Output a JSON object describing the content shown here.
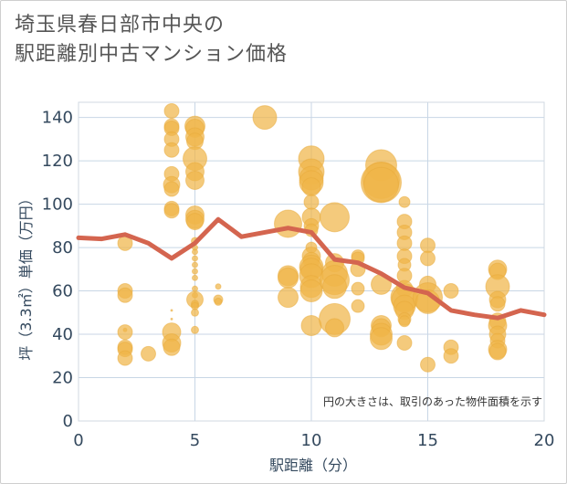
{
  "title_line1": "埼玉県春日部市中央の",
  "title_line2": "駅距離別中古マンション価格",
  "chart_data": {
    "type": "scatter",
    "xlabel": "駅距離（分）",
    "ylabel": "坪（3.3㎡）単価（万円）",
    "xlim": [
      0,
      20
    ],
    "ylim": [
      0,
      147
    ],
    "x_ticks": [
      0,
      5,
      10,
      15,
      20
    ],
    "y_ticks": [
      0,
      20,
      40,
      60,
      80,
      100,
      120,
      140
    ],
    "x_tick_labels": [
      "0",
      "5",
      "10",
      "15",
      "20"
    ],
    "y_tick_labels": [
      "0",
      "20",
      "40",
      "60",
      "80",
      "100",
      "120",
      "140"
    ],
    "grid": true,
    "annotation": "円の大きさは、取引のあった物件面積を示す",
    "colors": {
      "bubble": "#f0b54a",
      "line": "#d4654f",
      "grid": "#c8d6e5",
      "axis_text": "#34495e"
    },
    "series": [
      {
        "kind": "bubbles",
        "points": [
          {
            "x": 2,
            "y": 82,
            "s": 8
          },
          {
            "x": 2,
            "y": 60,
            "s": 8
          },
          {
            "x": 2,
            "y": 58,
            "s": 8
          },
          {
            "x": 2,
            "y": 42,
            "s": 2
          },
          {
            "x": 2,
            "y": 41,
            "s": 8
          },
          {
            "x": 2,
            "y": 34,
            "s": 8
          },
          {
            "x": 2,
            "y": 33,
            "s": 8
          },
          {
            "x": 2,
            "y": 29,
            "s": 8
          },
          {
            "x": 3,
            "y": 31,
            "s": 8
          },
          {
            "x": 4,
            "y": 143,
            "s": 8
          },
          {
            "x": 4,
            "y": 136,
            "s": 8
          },
          {
            "x": 4,
            "y": 135,
            "s": 8
          },
          {
            "x": 4,
            "y": 130,
            "s": 8
          },
          {
            "x": 4,
            "y": 125,
            "s": 8
          },
          {
            "x": 4,
            "y": 114,
            "s": 8
          },
          {
            "x": 4,
            "y": 109,
            "s": 9
          },
          {
            "x": 4,
            "y": 107,
            "s": 8
          },
          {
            "x": 4,
            "y": 98,
            "s": 8
          },
          {
            "x": 4,
            "y": 97,
            "s": 8
          },
          {
            "x": 4,
            "y": 51,
            "s": 1
          },
          {
            "x": 4,
            "y": 47,
            "s": 1
          },
          {
            "x": 4,
            "y": 41,
            "s": 10
          },
          {
            "x": 4,
            "y": 36,
            "s": 10
          },
          {
            "x": 4,
            "y": 34,
            "s": 9
          },
          {
            "x": 5,
            "y": 136,
            "s": 11
          },
          {
            "x": 5,
            "y": 135,
            "s": 10
          },
          {
            "x": 5,
            "y": 131,
            "s": 10
          },
          {
            "x": 5,
            "y": 129,
            "s": 9
          },
          {
            "x": 5,
            "y": 121,
            "s": 13
          },
          {
            "x": 5,
            "y": 115,
            "s": 10
          },
          {
            "x": 5,
            "y": 111,
            "s": 10
          },
          {
            "x": 5,
            "y": 95,
            "s": 10
          },
          {
            "x": 5,
            "y": 93,
            "s": 10
          },
          {
            "x": 5,
            "y": 92,
            "s": 9
          },
          {
            "x": 5,
            "y": 83,
            "s": 4
          },
          {
            "x": 5,
            "y": 80,
            "s": 3
          },
          {
            "x": 5,
            "y": 78,
            "s": 3
          },
          {
            "x": 5,
            "y": 75,
            "s": 3
          },
          {
            "x": 5,
            "y": 72,
            "s": 3
          },
          {
            "x": 5,
            "y": 69,
            "s": 3
          },
          {
            "x": 5,
            "y": 66,
            "s": 3
          },
          {
            "x": 5,
            "y": 61,
            "s": 3
          },
          {
            "x": 5,
            "y": 58,
            "s": 3
          },
          {
            "x": 5,
            "y": 56,
            "s": 9
          },
          {
            "x": 5,
            "y": 54,
            "s": 4
          },
          {
            "x": 5,
            "y": 53,
            "s": 4
          },
          {
            "x": 5,
            "y": 50,
            "s": 4
          },
          {
            "x": 5,
            "y": 42,
            "s": 4
          },
          {
            "x": 6,
            "y": 62,
            "s": 3
          },
          {
            "x": 6,
            "y": 56,
            "s": 5
          },
          {
            "x": 6,
            "y": 55,
            "s": 4
          },
          {
            "x": 8,
            "y": 140,
            "s": 13
          },
          {
            "x": 9,
            "y": 91,
            "s": 15
          },
          {
            "x": 9,
            "y": 67,
            "s": 11
          },
          {
            "x": 9,
            "y": 66,
            "s": 11
          },
          {
            "x": 9,
            "y": 57,
            "s": 11
          },
          {
            "x": 10,
            "y": 121,
            "s": 14
          },
          {
            "x": 10,
            "y": 115,
            "s": 14
          },
          {
            "x": 10,
            "y": 112,
            "s": 13
          },
          {
            "x": 10,
            "y": 110,
            "s": 13
          },
          {
            "x": 10,
            "y": 108,
            "s": 10
          },
          {
            "x": 10,
            "y": 101,
            "s": 8
          },
          {
            "x": 10,
            "y": 94,
            "s": 10
          },
          {
            "x": 10,
            "y": 90,
            "s": 8
          },
          {
            "x": 10,
            "y": 88,
            "s": 7
          },
          {
            "x": 10,
            "y": 80,
            "s": 6
          },
          {
            "x": 10,
            "y": 76,
            "s": 10
          },
          {
            "x": 10,
            "y": 74,
            "s": 9
          },
          {
            "x": 10,
            "y": 71,
            "s": 13
          },
          {
            "x": 10,
            "y": 70,
            "s": 12
          },
          {
            "x": 10,
            "y": 67,
            "s": 13
          },
          {
            "x": 10,
            "y": 62,
            "s": 12
          },
          {
            "x": 10,
            "y": 60,
            "s": 12
          },
          {
            "x": 10,
            "y": 44,
            "s": 11
          },
          {
            "x": 11,
            "y": 94,
            "s": 16
          },
          {
            "x": 11,
            "y": 73,
            "s": 10
          },
          {
            "x": 11,
            "y": 68,
            "s": 14
          },
          {
            "x": 11,
            "y": 65,
            "s": 16
          },
          {
            "x": 11,
            "y": 62,
            "s": 13
          },
          {
            "x": 11,
            "y": 47,
            "s": 17
          },
          {
            "x": 11,
            "y": 43,
            "s": 10
          },
          {
            "x": 12,
            "y": 76,
            "s": 7
          },
          {
            "x": 12,
            "y": 75,
            "s": 7
          },
          {
            "x": 12,
            "y": 70,
            "s": 8
          },
          {
            "x": 12,
            "y": 61,
            "s": 7
          },
          {
            "x": 12,
            "y": 53,
            "s": 7
          },
          {
            "x": 13,
            "y": 118,
            "s": 17
          },
          {
            "x": 13,
            "y": 111,
            "s": 20
          },
          {
            "x": 13,
            "y": 110,
            "s": 22
          },
          {
            "x": 13,
            "y": 109,
            "s": 19
          },
          {
            "x": 13,
            "y": 63,
            "s": 11
          },
          {
            "x": 13,
            "y": 44,
            "s": 11
          },
          {
            "x": 13,
            "y": 43,
            "s": 10
          },
          {
            "x": 13,
            "y": 40,
            "s": 12
          },
          {
            "x": 13,
            "y": 38,
            "s": 12
          },
          {
            "x": 14,
            "y": 101,
            "s": 6
          },
          {
            "x": 14,
            "y": 92,
            "s": 8
          },
          {
            "x": 14,
            "y": 87,
            "s": 8
          },
          {
            "x": 14,
            "y": 82,
            "s": 8
          },
          {
            "x": 14,
            "y": 76,
            "s": 8
          },
          {
            "x": 14,
            "y": 72,
            "s": 7
          },
          {
            "x": 14,
            "y": 67,
            "s": 8
          },
          {
            "x": 14,
            "y": 61,
            "s": 9
          },
          {
            "x": 14,
            "y": 57,
            "s": 15
          },
          {
            "x": 14,
            "y": 56,
            "s": 14
          },
          {
            "x": 14,
            "y": 53,
            "s": 12
          },
          {
            "x": 14,
            "y": 51,
            "s": 10
          },
          {
            "x": 14,
            "y": 47,
            "s": 7
          },
          {
            "x": 14,
            "y": 46,
            "s": 6
          },
          {
            "x": 14,
            "y": 36,
            "s": 8
          },
          {
            "x": 15,
            "y": 81,
            "s": 8
          },
          {
            "x": 15,
            "y": 75,
            "s": 8
          },
          {
            "x": 15,
            "y": 63,
            "s": 9
          },
          {
            "x": 15,
            "y": 57,
            "s": 16
          },
          {
            "x": 15,
            "y": 55,
            "s": 13
          },
          {
            "x": 15,
            "y": 26,
            "s": 8
          },
          {
            "x": 16,
            "y": 60,
            "s": 8
          },
          {
            "x": 16,
            "y": 34,
            "s": 8
          },
          {
            "x": 16,
            "y": 30,
            "s": 8
          },
          {
            "x": 18,
            "y": 70,
            "s": 10
          },
          {
            "x": 18,
            "y": 69,
            "s": 9
          },
          {
            "x": 18,
            "y": 62,
            "s": 13
          },
          {
            "x": 18,
            "y": 56,
            "s": 9
          },
          {
            "x": 18,
            "y": 54,
            "s": 8
          },
          {
            "x": 18,
            "y": 46,
            "s": 9
          },
          {
            "x": 18,
            "y": 44,
            "s": 10
          },
          {
            "x": 18,
            "y": 40,
            "s": 9
          },
          {
            "x": 18,
            "y": 37,
            "s": 8
          },
          {
            "x": 18,
            "y": 33,
            "s": 10
          },
          {
            "x": 18,
            "y": 32,
            "s": 9
          }
        ]
      },
      {
        "kind": "line",
        "x": [
          0,
          1,
          2,
          3,
          4,
          5,
          6,
          7,
          8,
          9,
          10,
          11,
          12,
          13,
          14,
          15,
          16,
          17,
          18,
          19,
          20
        ],
        "y": [
          84.5,
          84,
          86,
          82,
          75,
          82,
          93,
          85,
          87,
          89,
          87,
          74.5,
          73,
          68,
          61.5,
          59,
          51,
          49,
          47.5,
          51,
          49
        ]
      }
    ]
  }
}
